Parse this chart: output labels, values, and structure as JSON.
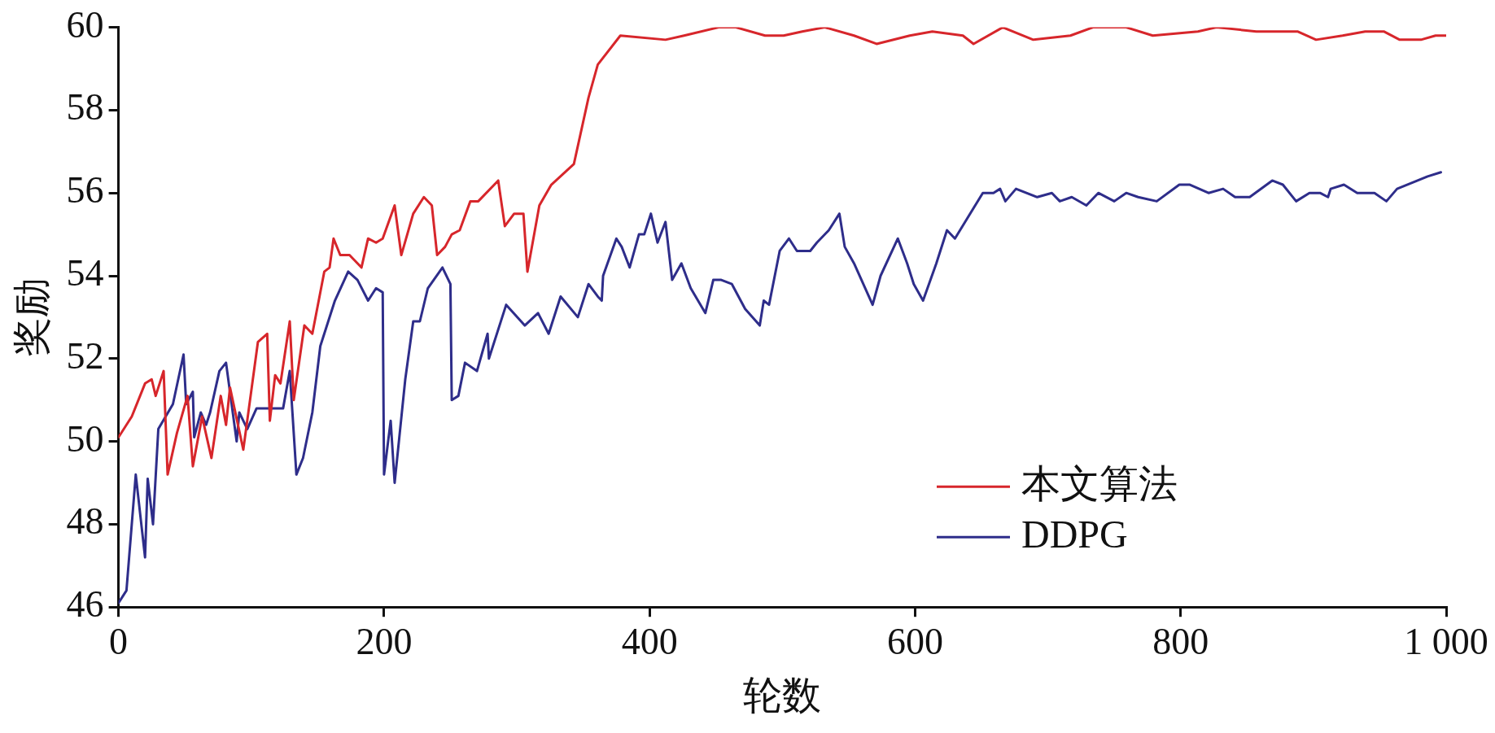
{
  "chart_data": {
    "type": "line",
    "xlabel": "轮数",
    "ylabel": "奖励",
    "xlim": [
      0,
      1000
    ],
    "xticks": [
      0,
      200,
      400,
      600,
      800,
      {
        "value": 1000,
        "label": "1 000"
      }
    ],
    "ylim": [
      46,
      60
    ],
    "yticks": [
      46,
      48,
      50,
      52,
      54,
      56,
      58,
      60
    ],
    "grid": false,
    "legend": "bottom right",
    "marker": "none",
    "line_style": "solid",
    "series": [
      {
        "name": "本文算法",
        "color": "#d7262b",
        "x": [
          0,
          10,
          20,
          25,
          28,
          34,
          37,
          44,
          52,
          56,
          63,
          70,
          77,
          81,
          84,
          94,
          105,
          112,
          114,
          118,
          122,
          129,
          132,
          140,
          146,
          155,
          159,
          162,
          167,
          174,
          183,
          188,
          194,
          199,
          208,
          213,
          222,
          230,
          236,
          240,
          246,
          251,
          257,
          265,
          271,
          286,
          291,
          298,
          305,
          308,
          317,
          326,
          343,
          354,
          361,
          378,
          412,
          426,
          452,
          465,
          487,
          501,
          515,
          532,
          554,
          571,
          596,
          613,
          636,
          644,
          666,
          689,
          717,
          734,
          759,
          779,
          813,
          827,
          857,
          888,
          902,
          922,
          939,
          953,
          965,
          981,
          992,
          1000
        ],
        "values": [
          50.1,
          50.6,
          51.4,
          51.5,
          51.1,
          51.7,
          49.2,
          50.2,
          51.1,
          49.4,
          50.6,
          49.6,
          51.1,
          50.4,
          51.3,
          49.8,
          52.4,
          52.6,
          50.5,
          51.6,
          51.4,
          52.9,
          51.0,
          52.8,
          52.6,
          54.1,
          54.2,
          54.9,
          54.5,
          54.5,
          54.2,
          54.9,
          54.8,
          54.9,
          55.7,
          54.5,
          55.5,
          55.9,
          55.7,
          54.5,
          54.7,
          55.0,
          55.1,
          55.8,
          55.8,
          56.3,
          55.2,
          55.5,
          55.5,
          54.1,
          55.7,
          56.2,
          56.7,
          58.3,
          59.1,
          59.8,
          59.7,
          59.8,
          60.0,
          60.0,
          59.8,
          59.8,
          59.9,
          60.0,
          59.8,
          59.6,
          59.8,
          59.9,
          59.8,
          59.6,
          60.0,
          59.7,
          59.8,
          60.0,
          60.0,
          59.8,
          59.9,
          60.0,
          59.9,
          59.9,
          59.7,
          59.8,
          59.9,
          59.9,
          59.7,
          59.7,
          59.8,
          59.8
        ]
      },
      {
        "name": "DDPG",
        "color": "#2e2d8a",
        "x": [
          0,
          6,
          13,
          20,
          22,
          26,
          30,
          41,
          49,
          51,
          56,
          57,
          62,
          66,
          69,
          76,
          81,
          89,
          91,
          97,
          104,
          124,
          129,
          134,
          139,
          146,
          152,
          160,
          163,
          173,
          180,
          188,
          194,
          199,
          200,
          205,
          208,
          216,
          222,
          227,
          233,
          244,
          250,
          251,
          256,
          261,
          270,
          278,
          279,
          292,
          306,
          316,
          324,
          333,
          346,
          354,
          361,
          364,
          365,
          375,
          379,
          385,
          392,
          396,
          401,
          406,
          412,
          417,
          424,
          431,
          442,
          448,
          454,
          462,
          472,
          483,
          486,
          490,
          498,
          505,
          511,
          521,
          526,
          535,
          543,
          547,
          554,
          568,
          574,
          587,
          594,
          599,
          606,
          616,
          624,
          630,
          651,
          659,
          664,
          668,
          676,
          692,
          703,
          709,
          718,
          729,
          738,
          750,
          759,
          768,
          782,
          799,
          807,
          821,
          832,
          841,
          852,
          869,
          877,
          887,
          897,
          905,
          911,
          913,
          923,
          933,
          946,
          955,
          963,
          986,
          996
        ],
        "values": [
          46.1,
          46.4,
          49.2,
          47.2,
          49.1,
          48.0,
          50.3,
          50.9,
          52.1,
          50.9,
          51.2,
          50.1,
          50.7,
          50.4,
          50.7,
          51.7,
          51.9,
          50.0,
          50.7,
          50.3,
          50.8,
          50.8,
          51.7,
          49.2,
          49.6,
          50.7,
          52.3,
          53.1,
          53.4,
          54.1,
          53.9,
          53.4,
          53.7,
          53.6,
          49.2,
          50.5,
          49.0,
          51.5,
          52.9,
          52.9,
          53.7,
          54.2,
          53.8,
          51.0,
          51.1,
          51.9,
          51.7,
          52.6,
          52.0,
          53.3,
          52.8,
          53.1,
          52.6,
          53.5,
          53.0,
          53.8,
          53.5,
          53.4,
          54.0,
          54.9,
          54.7,
          54.2,
          55.0,
          55.0,
          55.5,
          54.8,
          55.3,
          53.9,
          54.3,
          53.7,
          53.1,
          53.9,
          53.9,
          53.8,
          53.2,
          52.8,
          53.4,
          53.3,
          54.6,
          54.9,
          54.6,
          54.6,
          54.8,
          55.1,
          55.5,
          54.7,
          54.3,
          53.3,
          54.0,
          54.9,
          54.3,
          53.8,
          53.4,
          54.3,
          55.1,
          54.9,
          56.0,
          56.0,
          56.1,
          55.8,
          56.1,
          55.9,
          56.0,
          55.8,
          55.9,
          55.7,
          56.0,
          55.8,
          56.0,
          55.9,
          55.8,
          56.2,
          56.2,
          56.0,
          56.1,
          55.9,
          55.9,
          56.3,
          56.2,
          55.8,
          56.0,
          56.0,
          55.9,
          56.1,
          56.2,
          56.0,
          56.0,
          55.8,
          56.1,
          56.4,
          56.5
        ]
      }
    ]
  }
}
